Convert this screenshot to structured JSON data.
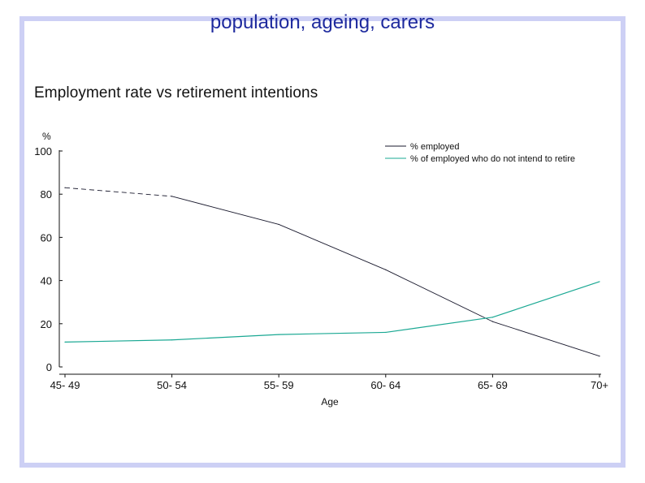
{
  "slide_title": "population, ageing, carers",
  "colors": {
    "frame": "#cdd0f5",
    "title": "#1e2a9e",
    "employed": "#1a1a2e",
    "not_retire": "#1aa893"
  },
  "chart_data": {
    "type": "line",
    "title": "Employment rate vs retirement intentions",
    "xlabel": "Age",
    "ylabel": "%",
    "ylim": [
      0,
      100
    ],
    "yticks": [
      0,
      20,
      40,
      60,
      80,
      100
    ],
    "grid": false,
    "legend_position": "top-right",
    "categories": [
      "45- 49",
      "50- 54",
      "55- 59",
      "60- 64",
      "65- 69",
      "70+"
    ],
    "series": [
      {
        "name": "% employed",
        "values": [
          83,
          79,
          66,
          45,
          21,
          5
        ],
        "dashed_segments": [
          0
        ]
      },
      {
        "name": "% of employed who do not intend to retire",
        "values": [
          11.5,
          12.5,
          15,
          16,
          23,
          39.5
        ]
      }
    ]
  }
}
